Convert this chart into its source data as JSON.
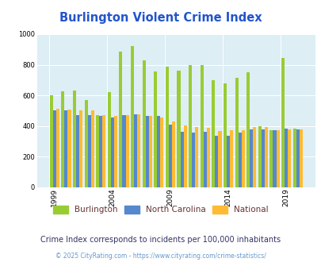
{
  "title": "Burlington Violent Crime Index",
  "years": [
    1999,
    2000,
    2001,
    2002,
    2003,
    2004,
    2005,
    2006,
    2007,
    2008,
    2009,
    2010,
    2011,
    2012,
    2013,
    2014,
    2015,
    2016,
    2017,
    2018,
    2019,
    2020
  ],
  "burlington": [
    600,
    625,
    630,
    570,
    470,
    620,
    885,
    920,
    830,
    755,
    785,
    760,
    800,
    795,
    700,
    680,
    715,
    750,
    400,
    375,
    845,
    385
  ],
  "north_carolina": [
    500,
    500,
    470,
    470,
    465,
    455,
    470,
    475,
    465,
    465,
    410,
    360,
    355,
    360,
    335,
    335,
    355,
    380,
    380,
    375,
    385,
    380
  ],
  "national": [
    510,
    505,
    500,
    500,
    470,
    465,
    470,
    475,
    465,
    455,
    430,
    405,
    395,
    388,
    367,
    372,
    373,
    395,
    395,
    373,
    380,
    377
  ],
  "colors": {
    "burlington": "#99cc33",
    "north_carolina": "#5588cc",
    "national": "#ffbb33"
  },
  "ylim": [
    0,
    1000
  ],
  "yticks": [
    0,
    200,
    400,
    600,
    800,
    1000
  ],
  "xtick_years": [
    1999,
    2004,
    2009,
    2014,
    2019
  ],
  "bg_color": "#ddeef5",
  "fig_bg": "#ffffff",
  "title_color": "#2255cc",
  "subtitle": "Crime Index corresponds to incidents per 100,000 inhabitants",
  "footer": "© 2025 CityRating.com - https://www.cityrating.com/crime-statistics/",
  "legend_labels": [
    "Burlington",
    "North Carolina",
    "National"
  ],
  "legend_text_color": "#663333",
  "subtitle_color": "#333366",
  "footer_color": "#6699cc"
}
